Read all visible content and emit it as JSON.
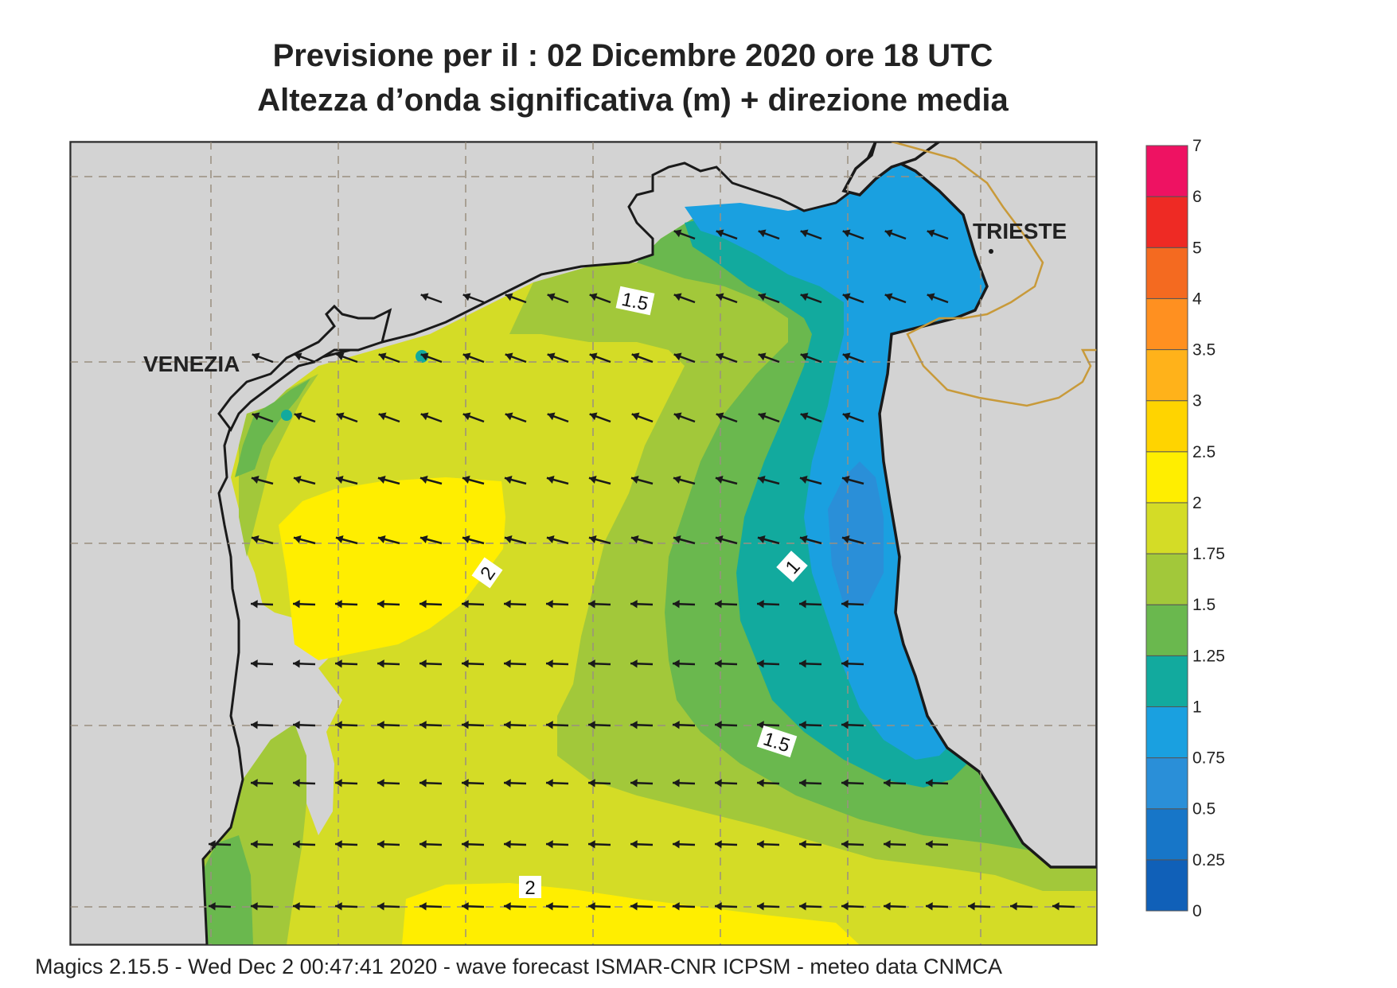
{
  "title_line1": "Previsione per il  :  02 Dicembre  2020   ore 18 UTC",
  "title_line2": "Altezza d’onda significativa (m) + direzione media",
  "footer": "Magics 2.15.5 - Wed Dec  2 00:47:41 2020 - wave forecast  ISMAR-CNR  ICPSM - meteo data   CNMCA",
  "cities": [
    {
      "name": "VENEZIA"
    },
    {
      "name": "TRIESTE"
    }
  ],
  "contour_labels": [
    "1.5",
    "2",
    "1",
    "1.5",
    "2"
  ],
  "legend": {
    "levels": [
      "0",
      "0.25",
      "0.5",
      "0.75",
      "1",
      "1.25",
      "1.5",
      "1.75",
      "2",
      "2.5",
      "3",
      "3.5",
      "4",
      "5",
      "6",
      "7"
    ],
    "colors": [
      "#1060b8",
      "#1776c8",
      "#2a8fd8",
      "#1aa0e0",
      "#12aa9e",
      "#6ab84e",
      "#a2c83a",
      "#d4dc26",
      "#ffee00",
      "#ffd400",
      "#ffb21a",
      "#ff9020",
      "#f46a20",
      "#ee2a24",
      "#ee1262"
    ]
  },
  "colors": {
    "land": "#d3d3d3",
    "coast": "#1a1a1a",
    "border": "#c89a3a",
    "grid": "#9a8f80",
    "arrow": "#1a1a1a"
  }
}
